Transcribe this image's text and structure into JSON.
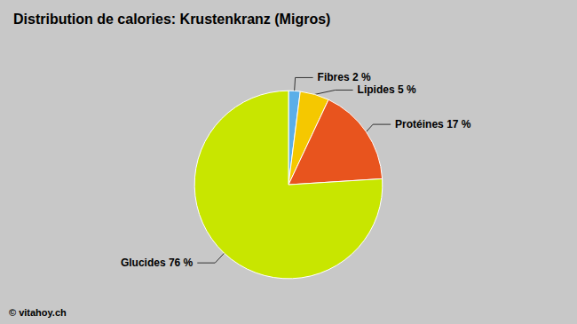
{
  "chart_data": {
    "type": "pie",
    "title": "Distribution de calories: Krustenkranz (Migros)",
    "categories": [
      "Fibres 2 %",
      "Lipides 5 %",
      "Protéines 17 %",
      "Glucides 76 %"
    ],
    "values": [
      2,
      5,
      17,
      76
    ],
    "colors": [
      "#5baee8",
      "#f5c800",
      "#e8541e",
      "#c8e600"
    ],
    "annotations": [
      "© vitahoy.ch"
    ]
  }
}
